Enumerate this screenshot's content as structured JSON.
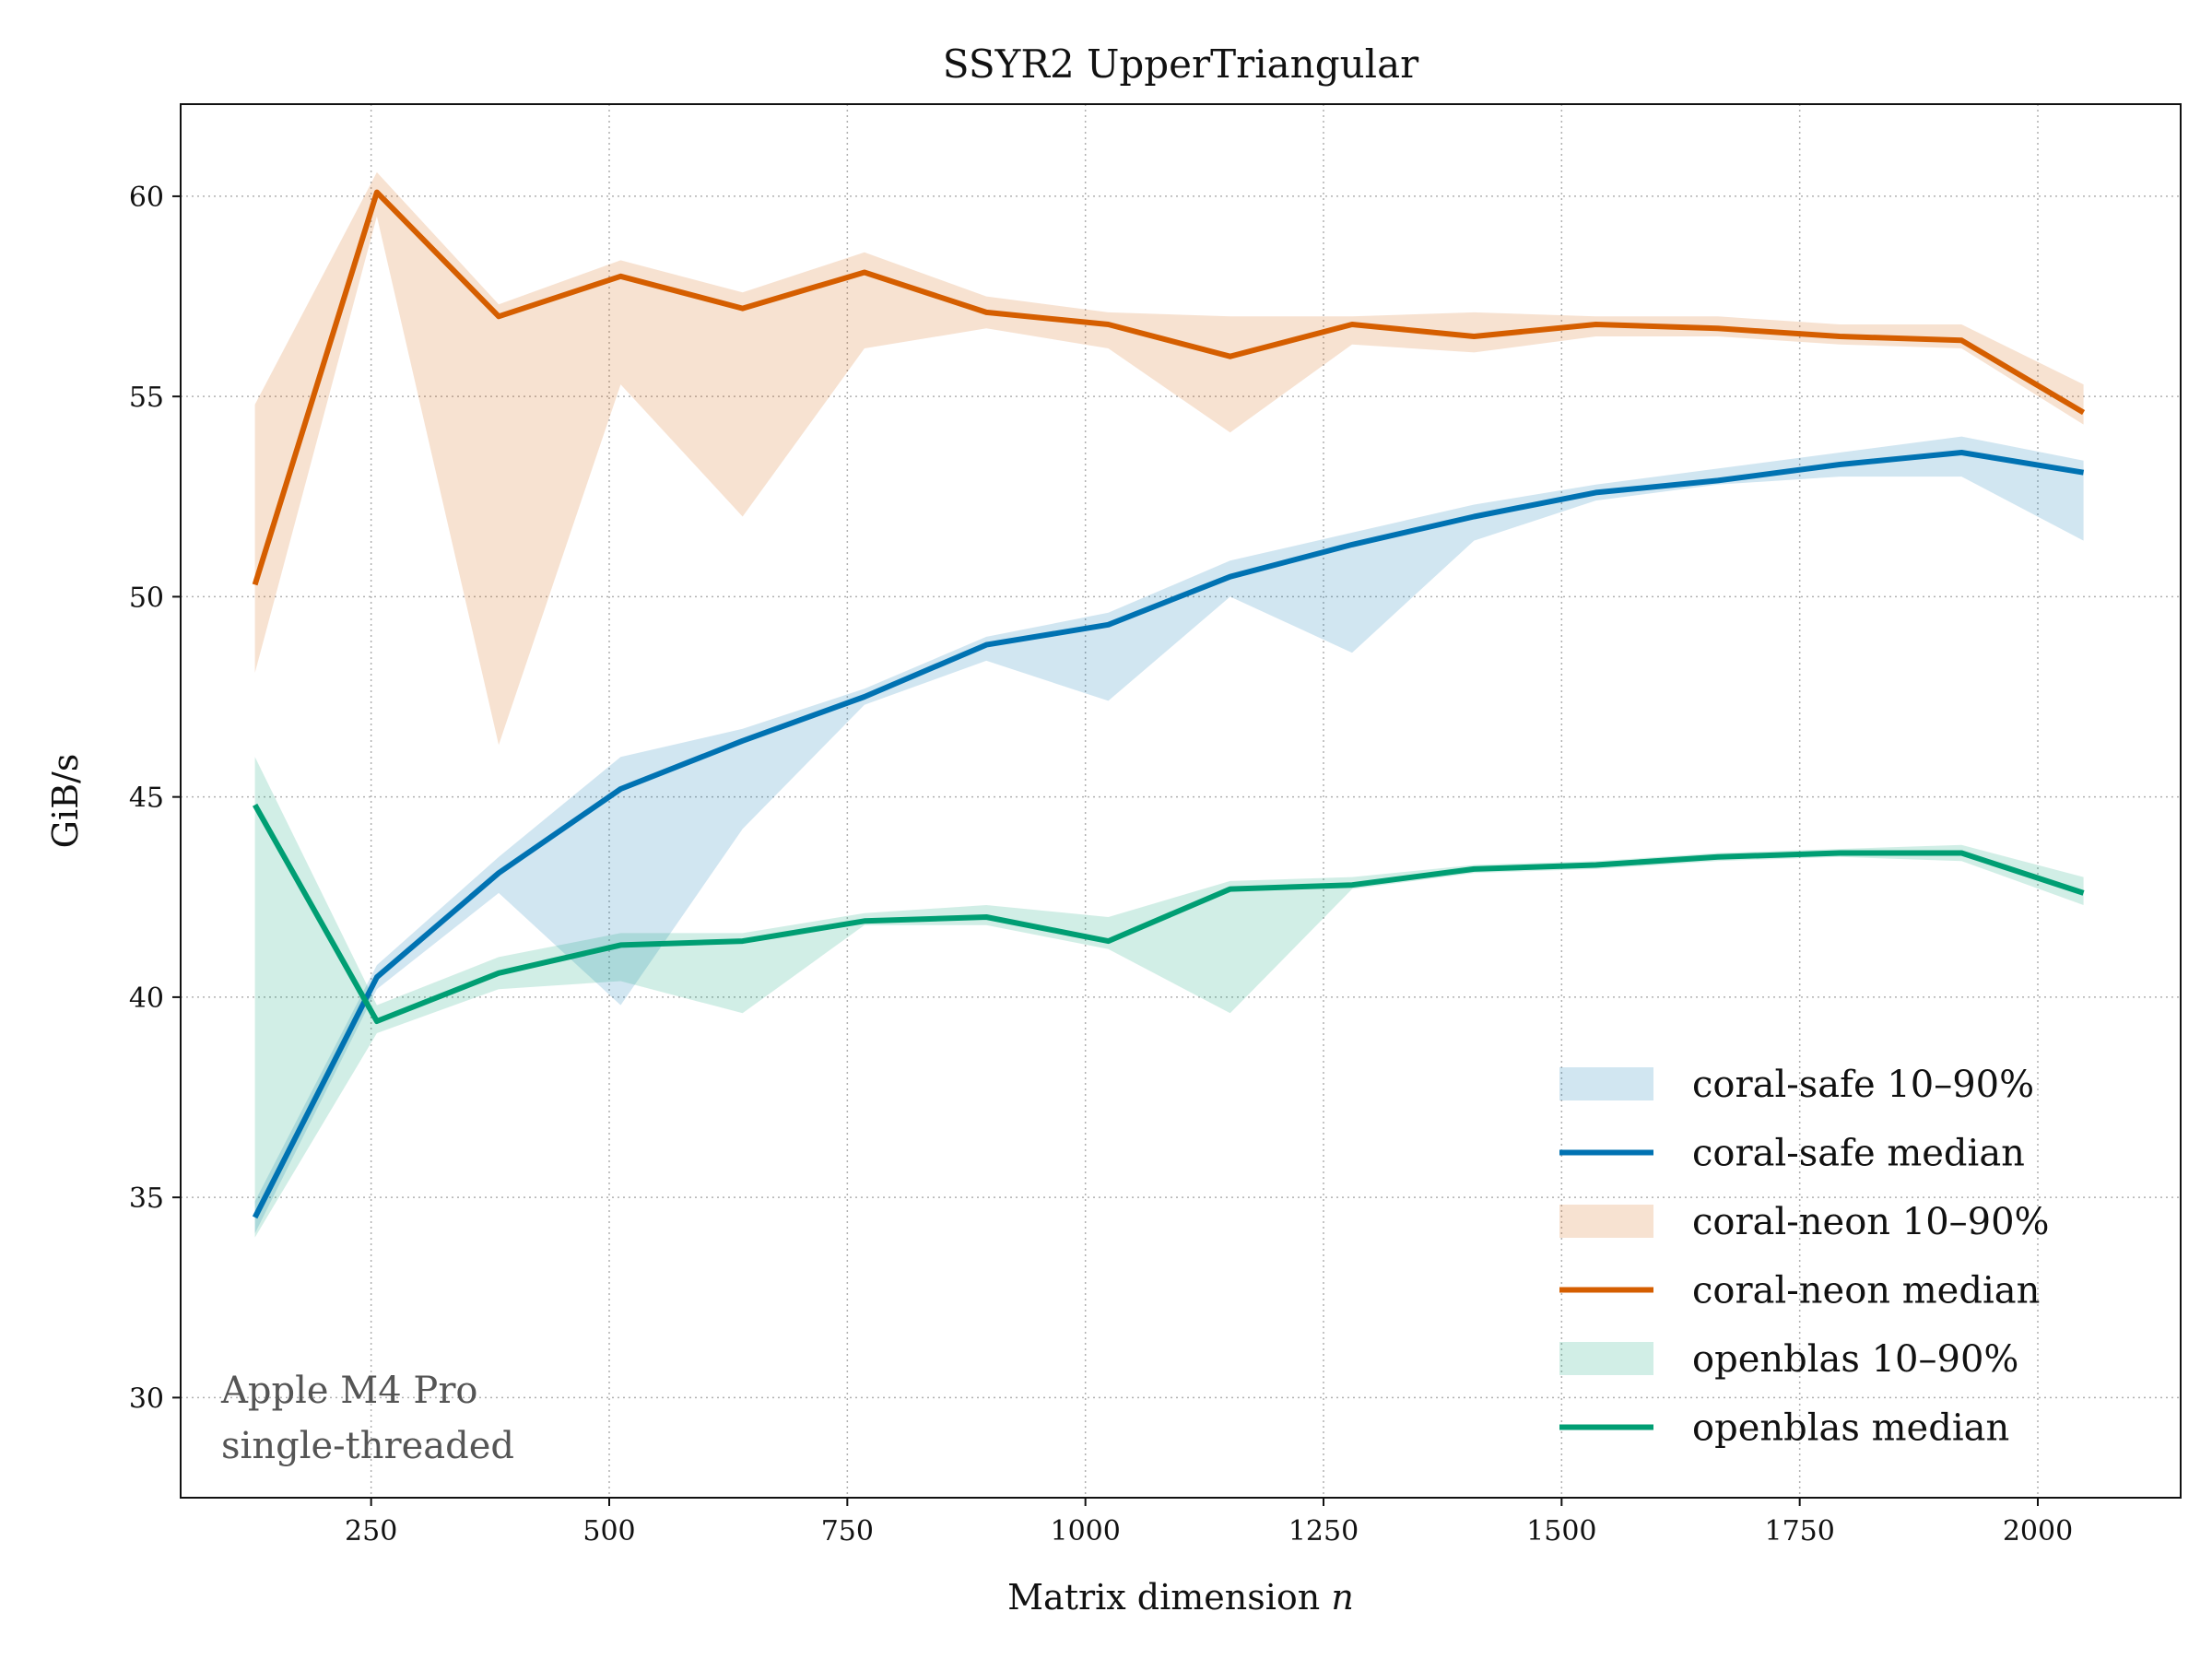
{
  "chart_data": {
    "type": "line",
    "title": "SSYR2 UpperTriangular",
    "xlabel": "Matrix dimension",
    "xlabel_var": "n",
    "ylabel": "GiB/s",
    "xlim": [
      50,
      2150
    ],
    "ylim": [
      27.5,
      62.3
    ],
    "grid": true,
    "legend_position": "lower-right",
    "x_ticks": [
      250,
      500,
      750,
      1000,
      1250,
      1500,
      1750,
      2000
    ],
    "x_tick_labels": [
      "250",
      "500",
      "750",
      "1000",
      "1250",
      "1500",
      "1750",
      "2000"
    ],
    "y_ticks": [
      30,
      35,
      40,
      45,
      50,
      55,
      60
    ],
    "y_tick_labels": [
      "30",
      "35",
      "40",
      "45",
      "50",
      "55",
      "60"
    ],
    "annotation": [
      "Apple M4 Pro",
      "single-threaded"
    ],
    "x": [
      128,
      256,
      384,
      512,
      640,
      768,
      896,
      1024,
      1152,
      1280,
      1408,
      1536,
      1664,
      1792,
      1920,
      2048
    ],
    "series": [
      {
        "name": "coral-safe",
        "color": "#0072b2",
        "median_label": "coral-safe median",
        "band_label": "coral-safe 10–90%",
        "median": [
          34.5,
          40.5,
          43.1,
          45.2,
          46.4,
          47.5,
          48.8,
          49.3,
          50.5,
          51.3,
          52.0,
          52.6,
          52.9,
          53.3,
          53.6,
          53.1
        ],
        "p10": [
          34.1,
          40.2,
          42.6,
          39.8,
          44.2,
          47.3,
          48.4,
          47.4,
          50.0,
          48.6,
          51.4,
          52.4,
          52.8,
          53.0,
          53.0,
          51.4
        ],
        "p90": [
          34.9,
          40.8,
          43.5,
          46.0,
          46.7,
          47.7,
          49.0,
          49.6,
          50.9,
          51.6,
          52.3,
          52.8,
          53.2,
          53.6,
          54.0,
          53.4
        ]
      },
      {
        "name": "coral-neon",
        "color": "#d55e00",
        "median_label": "coral-neon median",
        "band_label": "coral-neon 10–90%",
        "median": [
          50.3,
          60.1,
          57.0,
          58.0,
          57.2,
          58.1,
          57.1,
          56.8,
          56.0,
          56.8,
          56.5,
          56.8,
          56.7,
          56.5,
          56.4,
          54.6
        ],
        "p10": [
          48.1,
          59.5,
          46.3,
          55.3,
          52.0,
          56.2,
          56.7,
          56.2,
          54.1,
          56.3,
          56.1,
          56.5,
          56.5,
          56.3,
          56.2,
          54.3
        ],
        "p90": [
          54.8,
          60.6,
          57.3,
          58.4,
          57.6,
          58.6,
          57.5,
          57.1,
          57.0,
          57.0,
          57.1,
          57.0,
          57.0,
          56.8,
          56.8,
          55.3
        ]
      },
      {
        "name": "openblas",
        "color": "#009e73",
        "median_label": "openblas median",
        "band_label": "openblas 10–90%",
        "median": [
          44.8,
          39.4,
          40.6,
          41.3,
          41.4,
          41.9,
          42.0,
          41.4,
          42.7,
          42.8,
          43.2,
          43.3,
          43.5,
          43.6,
          43.6,
          42.6
        ],
        "p10": [
          34.0,
          39.1,
          40.2,
          40.4,
          39.6,
          41.8,
          41.8,
          41.2,
          39.6,
          42.7,
          43.1,
          43.2,
          43.4,
          43.5,
          43.4,
          42.3
        ],
        "p90": [
          46.0,
          39.8,
          41.0,
          41.6,
          41.6,
          42.1,
          42.3,
          42.0,
          42.9,
          43.0,
          43.3,
          43.4,
          43.6,
          43.7,
          43.8,
          43.0
        ]
      }
    ]
  }
}
